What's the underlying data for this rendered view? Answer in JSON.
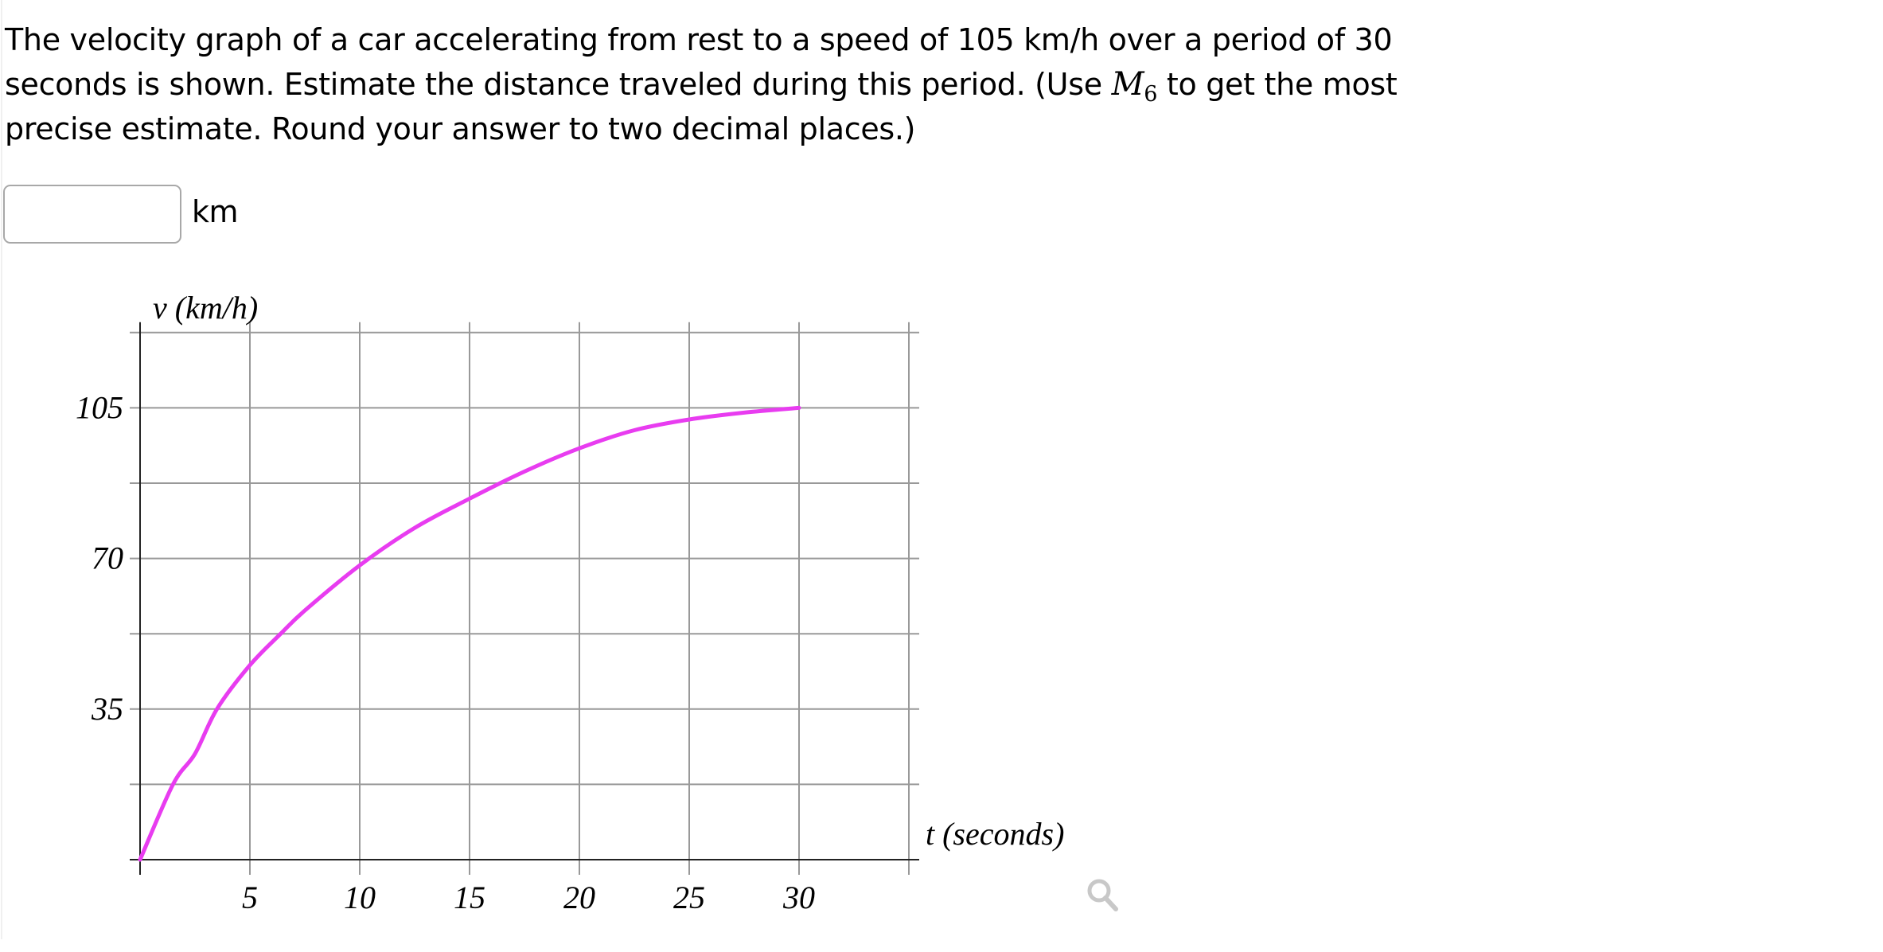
{
  "question": {
    "text_before": "The velocity graph of a car accelerating from rest to a speed of 105 km/h over a period of 30 seconds is shown. Estimate the distance traveled during this period. (Use ",
    "math_symbol": "M",
    "math_subscript": "6",
    "text_after": " to get the most precise estimate. Round your answer to two decimal places.)"
  },
  "answer": {
    "value": "",
    "placeholder": "",
    "unit": "km"
  },
  "zoom_icon": "magnifier-icon",
  "chart_data": {
    "type": "line",
    "title": "",
    "xlabel": "t (seconds)",
    "ylabel": "v (km/h)",
    "xlim": [
      0,
      35
    ],
    "ylim": [
      0,
      122.5
    ],
    "x_ticks": [
      5,
      10,
      15,
      20,
      25,
      30
    ],
    "x_tick_labels": [
      "5",
      "10",
      "15",
      "20",
      "25",
      "30"
    ],
    "x_gridlines": [
      5,
      10,
      15,
      20,
      25,
      30,
      35
    ],
    "y_ticks": [
      35,
      70,
      105
    ],
    "y_tick_labels": [
      "35",
      "70",
      "105"
    ],
    "y_gridlines": [
      17.5,
      35,
      52.5,
      70,
      87.5,
      105,
      122.5
    ],
    "grid": true,
    "legend": "none",
    "series": [
      {
        "name": "velocity",
        "color": "#e83cf0",
        "x": [
          0,
          1.5,
          2.5,
          3.5,
          5,
          6.4,
          7.5,
          10,
          12.5,
          15,
          17.5,
          20,
          22.5,
          25,
          27.5,
          30
        ],
        "y": [
          0,
          17.5,
          24.6,
          35,
          45.2,
          52.5,
          57.9,
          68.4,
          77.1,
          83.9,
          90.2,
          95.6,
          99.8,
          102.3,
          103.9,
          105
        ]
      }
    ]
  }
}
